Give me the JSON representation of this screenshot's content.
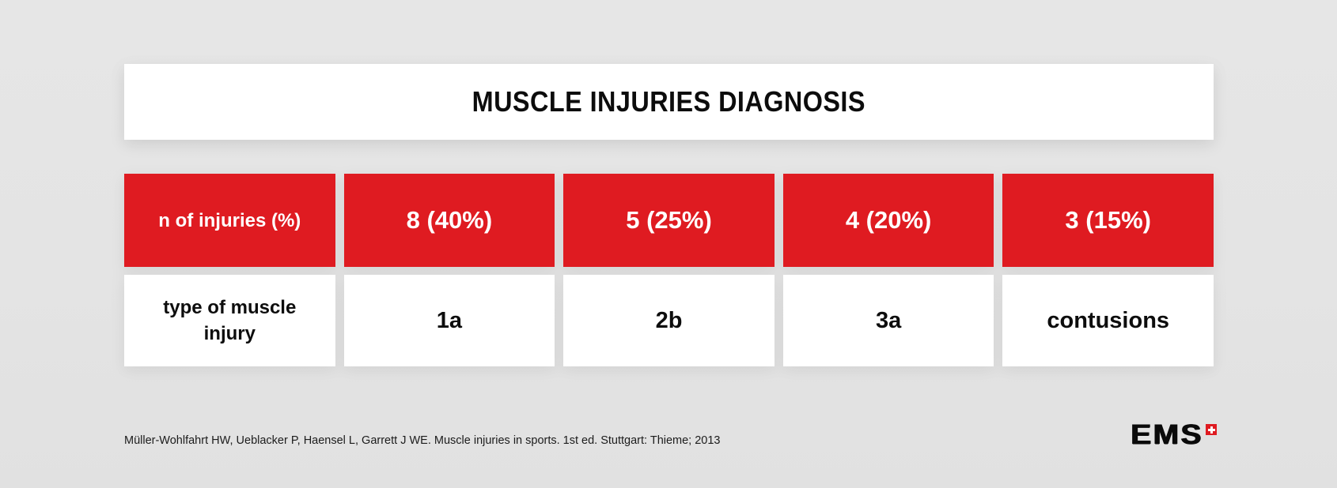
{
  "colors": {
    "accent_red": "#df1b21",
    "background_gray": "#e4e4e4",
    "text_dark": "#0d0d0d",
    "cell_white": "#ffffff"
  },
  "header": {
    "title": "MUSCLE INJURIES DIAGNOSIS"
  },
  "table": {
    "rows": [
      {
        "style": "red",
        "cells": [
          "n of injuries (%)",
          "8 (40%)",
          "5 (25%)",
          "4 (20%)",
          "3 (15%)"
        ]
      },
      {
        "style": "white",
        "cells": [
          "type of muscle injury",
          "1a",
          "2b",
          "3a",
          "contusions"
        ]
      }
    ]
  },
  "chart_data": {
    "type": "table",
    "title": "MUSCLE INJURIES DIAGNOSIS",
    "row_labels": [
      "n of injuries (%)",
      "type of muscle injury"
    ],
    "categories": [
      "1a",
      "2b",
      "3a",
      "contusions"
    ],
    "n_of_injuries": [
      8,
      5,
      4,
      3
    ],
    "percent_of_injuries": [
      40,
      25,
      20,
      15
    ],
    "cell_text": [
      [
        "8 (40%)",
        "5 (25%)",
        "4 (20%)",
        "3 (15%)"
      ],
      [
        "1a",
        "2b",
        "3a",
        "contusions"
      ]
    ],
    "source": "Müller-Wohlfahrt HW, Ueblacker P, Haensel L, Garrett J WE. Muscle injuries in sports. 1st ed. Stuttgart: Thieme; 2013"
  },
  "footer": {
    "citation": "Müller-Wohlfahrt HW, Ueblacker P, Haensel L, Garrett J WE. Muscle injuries in sports. 1st ed. Stuttgart: Thieme; 2013",
    "logo_text": "EMS"
  }
}
